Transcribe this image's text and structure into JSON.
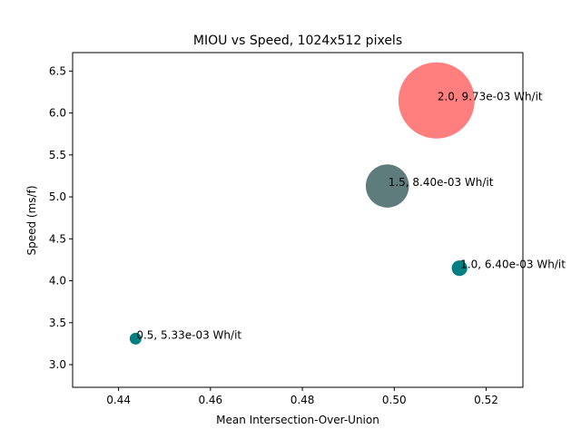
{
  "chart_data": {
    "type": "scatter",
    "title": "MIOU vs Speed, 1024x512 pixels",
    "xlabel": "Mean Intersection-Over-Union",
    "ylabel": "Speed (ms/f)",
    "xlim": [
      0.43,
      0.528
    ],
    "ylim": [
      2.73,
      6.72
    ],
    "xticks": [
      0.44,
      0.46,
      0.48,
      0.5,
      0.52
    ],
    "xtick_labels": [
      "0.44",
      "0.46",
      "0.48",
      "0.50",
      "0.52"
    ],
    "yticks": [
      3.0,
      3.5,
      4.0,
      4.5,
      5.0,
      5.5,
      6.0,
      6.5
    ],
    "ytick_labels": [
      "3.0",
      "3.5",
      "4.0",
      "4.5",
      "5.0",
      "5.5",
      "6.0",
      "6.5"
    ],
    "grid": false,
    "points": [
      {
        "x": 0.4437,
        "y": 3.31,
        "energy": 0.00533,
        "label": "0.5, 5.33e-03 Wh/it",
        "color": "#008080"
      },
      {
        "x": 0.5142,
        "y": 4.15,
        "energy": 0.0064,
        "label": "1.0, 6.40e-03 Wh/it",
        "color": "#008080"
      },
      {
        "x": 0.4985,
        "y": 5.13,
        "energy": 0.0084,
        "label": "1.5, 8.40e-03 Wh/it",
        "color": "#5f7c7c"
      },
      {
        "x": 0.5092,
        "y": 6.15,
        "energy": 0.00973,
        "label": "2.0, 9.73e-03 Wh/it",
        "color": "#ff7f7f"
      }
    ]
  }
}
